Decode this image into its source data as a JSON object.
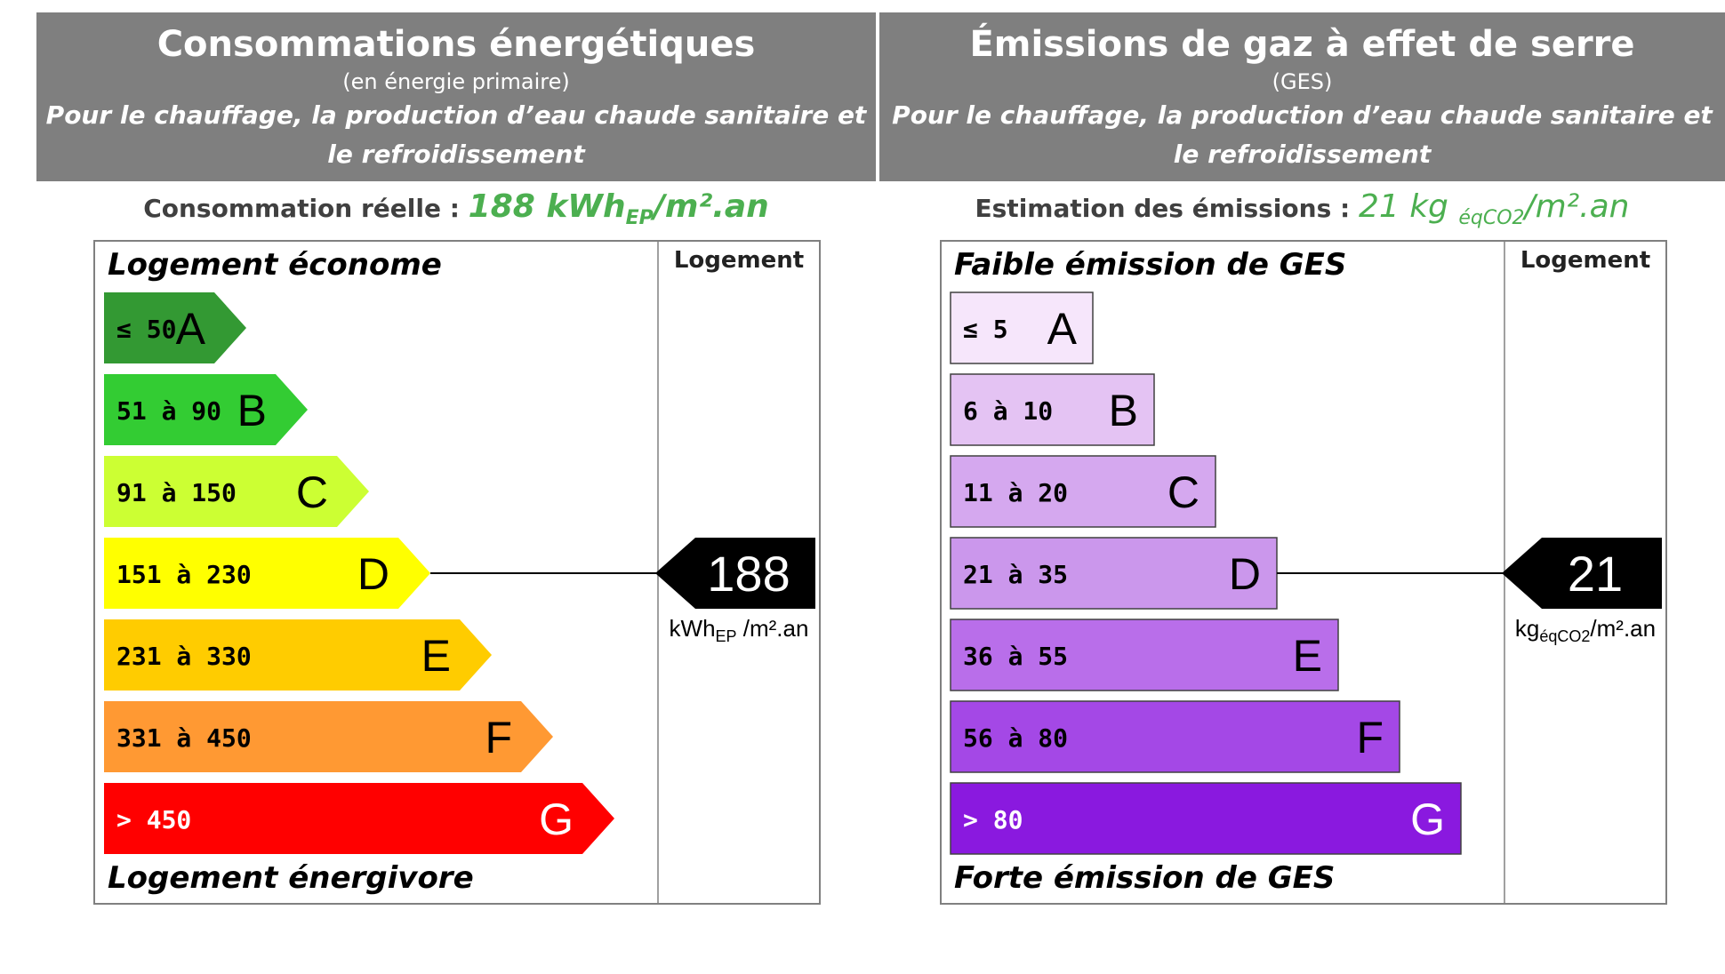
{
  "chart_data": [
    {
      "type": "bar",
      "title": "Consommations énergétiques",
      "subtitle": "(en énergie primaire)",
      "scope": "Pour le chauffage, la production d’eau chaude sanitaire et le refroidissement",
      "estimate_label": "Consommation réelle : ",
      "estimate_value": "188 kWh",
      "estimate_sub": "EP",
      "estimate_suffix": "/m².an",
      "top_label": "Logement économe",
      "bottom_label": "Logement énergivore",
      "column_label": "Logement",
      "unit_main": "kWh",
      "unit_sub": "EP",
      "unit_suffix": " /m².an",
      "marker_value": "188",
      "marker_class_index": 3,
      "style": "arrow",
      "categories": [
        "A",
        "B",
        "C",
        "D",
        "E",
        "F",
        "G"
      ],
      "ranges": [
        "≤ 50",
        "51 à 90",
        "91 à 150",
        "151 à 230",
        "231 à 330",
        "331 à 450",
        "> 450"
      ],
      "colors": [
        "#339933",
        "#33cc33",
        "#ccff33",
        "#ffff00",
        "#ffcc00",
        "#ff9933",
        "#ff0000"
      ],
      "label_colors": [
        "#000000",
        "#000000",
        "#000000",
        "#000000",
        "#000000",
        "#000000",
        "#ffffff"
      ],
      "letter_colors": [
        "#000000",
        "#000000",
        "#000000",
        "#000000",
        "#000000",
        "#000000",
        "#ffffff"
      ]
    },
    {
      "type": "bar",
      "title": "Émissions de gaz à effet de serre",
      "subtitle": "(GES)",
      "scope": "Pour le chauffage, la production d’eau chaude sanitaire et le refroidissement",
      "estimate_label": "Estimation des émissions : ",
      "estimate_value": "21 kg ",
      "estimate_sub": "éqCO2",
      "estimate_suffix": "/m².an",
      "top_label": "Faible émission de GES",
      "bottom_label": "Forte émission de GES",
      "column_label": "Logement",
      "unit_main": "kg",
      "unit_sub": "éqCO2",
      "unit_suffix": "/m².an",
      "marker_value": "21",
      "marker_class_index": 3,
      "style": "rect",
      "categories": [
        "A",
        "B",
        "C",
        "D",
        "E",
        "F",
        "G"
      ],
      "ranges": [
        "≤ 5",
        "6 à 10",
        "11 à 20",
        "21 à 35",
        "36 à 55",
        "56 à 80",
        "> 80"
      ],
      "colors": [
        "#f6e6fb",
        "#e4c3f3",
        "#d5a8ef",
        "#cb97ec",
        "#b96eea",
        "#a448e6",
        "#8a19df"
      ],
      "label_colors": [
        "#000000",
        "#000000",
        "#000000",
        "#000000",
        "#000000",
        "#000000",
        "#ffffff"
      ],
      "letter_colors": [
        "#000000",
        "#000000",
        "#000000",
        "#000000",
        "#000000",
        "#000000",
        "#ffffff"
      ]
    }
  ]
}
